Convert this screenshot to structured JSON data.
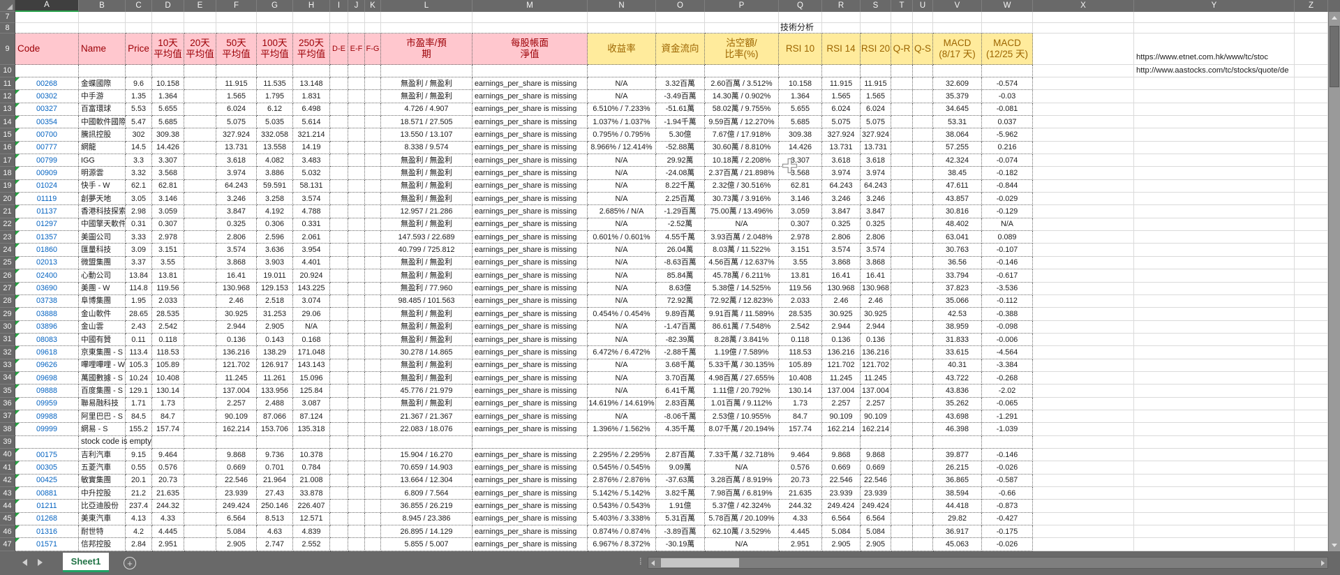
{
  "sheet": {
    "column_letters": [
      "A",
      "B",
      "C",
      "D",
      "E",
      "F",
      "G",
      "H",
      "I",
      "J",
      "K",
      "L",
      "M",
      "N",
      "O",
      "P",
      "Q",
      "R",
      "S",
      "T",
      "U",
      "V",
      "W",
      "X",
      "Y",
      "Z"
    ],
    "pre_row_numbers": [
      7,
      8,
      9,
      10
    ],
    "analysis_label": "技術分析",
    "eps_missing_text": "earnings_per_share is missing",
    "urls": {
      "etnet": "https://www.etnet.com.hk/www/tc/stoc",
      "aastocks": "http://www.aastocks.com/tc/stocks/quote/de"
    },
    "headers": {
      "code": "Code",
      "name": "Name",
      "price": "Price",
      "avg_10d": "10天\n平均值",
      "avg_20d": "20天\n平均值",
      "avg_50d": "50天\n平均值",
      "avg_100d": "100天\n平均值",
      "avg_250d": "250天\n平均值",
      "d_e": "D-E",
      "e_f": "E-F",
      "f_g": "F-G",
      "pe_ratio_forecast": "市盈率/預\n期",
      "book_value_per_share": "每股帳面\n淨值",
      "yield_rate": "收益率",
      "money_flow": "資金流向",
      "short_sell": "沽空額/\n比率(%)",
      "rsi_10": "RSI 10",
      "rsi_14": "RSI 14",
      "rsi_20": "RSI 20",
      "q_r": "Q-R",
      "q_s": "Q-S",
      "macd_8_17": "MACD\n(8/17 天)",
      "macd_12_25": "MACD\n(12/25 天)"
    },
    "row_fields": [
      "row_number",
      "code",
      "name",
      "price",
      "avg_10d",
      "avg_20d",
      "avg_50d",
      "avg_100d",
      "avg_250d",
      "pe_ratio_forecast",
      "yield_rate",
      "money_flow",
      "short_sell_amount_ratio",
      "rsi_10",
      "rsi_14",
      "rsi_20",
      "macd_8_17",
      "macd_12_25"
    ],
    "rows": [
      [
        11,
        "00268",
        "金蝶國際",
        "9.6",
        "10.158",
        "",
        "11.915",
        "11.535",
        "13.148",
        "無盈利 / 無盈利",
        "N/A",
        "3.32百萬",
        "2.60百萬 / 3.512%",
        "10.158",
        "11.915",
        "11.915",
        "32.609",
        "-0.574"
      ],
      [
        12,
        "00302",
        "中手游",
        "1.35",
        "1.364",
        "",
        "1.565",
        "1.795",
        "1.831",
        "無盈利 / 無盈利",
        "N/A",
        "-3.49百萬",
        "14.30萬 / 0.902%",
        "1.364",
        "1.565",
        "1.565",
        "35.379",
        "-0.03"
      ],
      [
        13,
        "00327",
        "百富環球",
        "5.53",
        "5.655",
        "",
        "6.024",
        "6.12",
        "6.498",
        "4.726 / 4.907",
        "6.510% / 7.233%",
        "-51.61萬",
        "58.02萬 / 9.755%",
        "5.655",
        "6.024",
        "6.024",
        "34.645",
        "-0.081"
      ],
      [
        14,
        "00354",
        "中國軟件國際",
        "5.47",
        "5.685",
        "",
        "5.075",
        "5.035",
        "5.614",
        "18.571 / 27.505",
        "1.037% / 1.037%",
        "-1.94千萬",
        "9.59百萬 / 12.270%",
        "5.685",
        "5.075",
        "5.075",
        "53.31",
        "0.037"
      ],
      [
        15,
        "00700",
        "騰訊控股",
        "302",
        "309.38",
        "",
        "327.924",
        "332.058",
        "321.214",
        "13.550 / 13.107",
        "0.795% / 0.795%",
        "5.30億",
        "7.67億 / 17.918%",
        "309.38",
        "327.924",
        "327.924",
        "38.064",
        "-5.962"
      ],
      [
        16,
        "00777",
        "網龍",
        "14.5",
        "14.426",
        "",
        "13.731",
        "13.558",
        "14.19",
        "8.338 / 9.574",
        "8.966% / 12.414%",
        "-52.88萬",
        "30.60萬 / 8.810%",
        "14.426",
        "13.731",
        "13.731",
        "57.255",
        "0.216"
      ],
      [
        17,
        "00799",
        "IGG",
        "3.3",
        "3.307",
        "",
        "3.618",
        "4.082",
        "3.483",
        "無盈利 / 無盈利",
        "N/A",
        "29.92萬",
        "10.18萬 / 2.208%",
        "3.307",
        "3.618",
        "3.618",
        "42.324",
        "-0.074"
      ],
      [
        18,
        "00909",
        "明源雲",
        "3.32",
        "3.568",
        "",
        "3.974",
        "3.886",
        "5.032",
        "無盈利 / 無盈利",
        "N/A",
        "-24.08萬",
        "2.37百萬 / 21.898%",
        "3.568",
        "3.974",
        "3.974",
        "38.45",
        "-0.182"
      ],
      [
        19,
        "01024",
        "快手 - W",
        "62.1",
        "62.81",
        "",
        "64.243",
        "59.591",
        "58.131",
        "無盈利 / 無盈利",
        "N/A",
        "8.22千萬",
        "2.32億 / 30.516%",
        "62.81",
        "64.243",
        "64.243",
        "47.611",
        "-0.844"
      ],
      [
        20,
        "01119",
        "創夢天地",
        "3.05",
        "3.146",
        "",
        "3.246",
        "3.258",
        "3.574",
        "無盈利 / 無盈利",
        "N/A",
        "2.25百萬",
        "30.73萬 / 3.916%",
        "3.146",
        "3.246",
        "3.246",
        "43.857",
        "-0.029"
      ],
      [
        21,
        "01137",
        "香港科技探索",
        "2.98",
        "3.059",
        "",
        "3.847",
        "4.192",
        "4.788",
        "12.957 / 21.286",
        "2.685% / N/A",
        "-1.29百萬",
        "75.00萬 / 13.496%",
        "3.059",
        "3.847",
        "3.847",
        "30.816",
        "-0.129"
      ],
      [
        22,
        "01297",
        "中國擎天軟件",
        "0.31",
        "0.307",
        "",
        "0.325",
        "0.306",
        "0.331",
        "無盈利 / 無盈利",
        "N/A",
        "-2.52萬",
        "N/A",
        "0.307",
        "0.325",
        "0.325",
        "48.402",
        "N/A"
      ],
      [
        23,
        "01357",
        "美圖公司",
        "3.33",
        "2.978",
        "",
        "2.806",
        "2.596",
        "2.061",
        "147.593 / 22.689",
        "0.601% / 0.601%",
        "4.55千萬",
        "3.93百萬 / 2.048%",
        "2.978",
        "2.806",
        "2.806",
        "63.041",
        "0.089"
      ],
      [
        24,
        "01860",
        "匯量科技",
        "3.09",
        "3.151",
        "",
        "3.574",
        "3.636",
        "3.954",
        "40.799 / 725.812",
        "N/A",
        "26.04萬",
        "8.03萬 / 11.522%",
        "3.151",
        "3.574",
        "3.574",
        "30.763",
        "-0.107"
      ],
      [
        25,
        "02013",
        "微盟集團",
        "3.37",
        "3.55",
        "",
        "3.868",
        "3.903",
        "4.401",
        "無盈利 / 無盈利",
        "N/A",
        "-8.63百萬",
        "4.56百萬 / 12.637%",
        "3.55",
        "3.868",
        "3.868",
        "36.56",
        "-0.146"
      ],
      [
        26,
        "02400",
        "心動公司",
        "13.84",
        "13.81",
        "",
        "16.41",
        "19.011",
        "20.924",
        "無盈利 / 無盈利",
        "N/A",
        "85.84萬",
        "45.78萬 / 6.211%",
        "13.81",
        "16.41",
        "16.41",
        "33.794",
        "-0.617"
      ],
      [
        27,
        "03690",
        "美團 - W",
        "114.8",
        "119.56",
        "",
        "130.968",
        "129.153",
        "143.225",
        "無盈利 / 77.960",
        "N/A",
        "8.63億",
        "5.38億 / 14.525%",
        "119.56",
        "130.968",
        "130.968",
        "37.823",
        "-3.536"
      ],
      [
        28,
        "03738",
        "阜博集團",
        "1.95",
        "2.033",
        "",
        "2.46",
        "2.518",
        "3.074",
        "98.485 / 101.563",
        "N/A",
        "72.92萬",
        "72.92萬 / 12.823%",
        "2.033",
        "2.46",
        "2.46",
        "35.066",
        "-0.112"
      ],
      [
        29,
        "03888",
        "金山軟件",
        "28.65",
        "28.535",
        "",
        "30.925",
        "31.253",
        "29.06",
        "無盈利 / 無盈利",
        "0.454% / 0.454%",
        "9.89百萬",
        "9.91百萬 / 11.589%",
        "28.535",
        "30.925",
        "30.925",
        "42.53",
        "-0.388"
      ],
      [
        30,
        "03896",
        "金山雲",
        "2.43",
        "2.542",
        "",
        "2.944",
        "2.905",
        "N/A",
        "無盈利 / 無盈利",
        "N/A",
        "-1.47百萬",
        "86.61萬 / 7.548%",
        "2.542",
        "2.944",
        "2.944",
        "38.959",
        "-0.098"
      ],
      [
        31,
        "08083",
        "中國有贊",
        "0.11",
        "0.118",
        "",
        "0.136",
        "0.143",
        "0.168",
        "無盈利 / 無盈利",
        "N/A",
        "-82.39萬",
        "8.28萬 / 3.841%",
        "0.118",
        "0.136",
        "0.136",
        "31.833",
        "-0.006"
      ],
      [
        32,
        "09618",
        "京東集團 - S",
        "113.4",
        "118.53",
        "",
        "136.216",
        "138.29",
        "171.048",
        "30.278 / 14.865",
        "6.472% / 6.472%",
        "-2.88千萬",
        "1.19億 / 7.589%",
        "118.53",
        "136.216",
        "136.216",
        "33.615",
        "-4.564"
      ],
      [
        33,
        "09626",
        "嗶哩嗶哩 - W",
        "105.3",
        "105.89",
        "",
        "121.702",
        "126.917",
        "143.143",
        "無盈利 / 無盈利",
        "N/A",
        "3.68千萬",
        "5.33千萬 / 30.135%",
        "105.89",
        "121.702",
        "121.702",
        "40.31",
        "-3.384"
      ],
      [
        34,
        "09698",
        "萬國數據 - S",
        "10.24",
        "10.408",
        "",
        "11.245",
        "11.261",
        "15.096",
        "無盈利 / 無盈利",
        "N/A",
        "3.70百萬",
        "4.98百萬 / 27.655%",
        "10.408",
        "11.245",
        "11.245",
        "43.722",
        "-0.268"
      ],
      [
        35,
        "09888",
        "百度集團 - S",
        "129.1",
        "130.14",
        "",
        "137.004",
        "133.956",
        "125.84",
        "45.776 / 21.979",
        "N/A",
        "6.41千萬",
        "1.11億 / 20.792%",
        "130.14",
        "137.004",
        "137.004",
        "43.836",
        "-2.02"
      ],
      [
        36,
        "09959",
        "聯易融科技",
        "1.71",
        "1.73",
        "",
        "2.257",
        "2.488",
        "3.087",
        "無盈利 / 無盈利",
        "14.619% / 14.619%",
        "2.83百萬",
        "1.01百萬 / 9.112%",
        "1.73",
        "2.257",
        "2.257",
        "35.262",
        "-0.065"
      ],
      [
        37,
        "09988",
        "阿里巴巴 - S",
        "84.5",
        "84.7",
        "",
        "90.109",
        "87.066",
        "87.124",
        "21.367 / 21.367",
        "N/A",
        "-8.06千萬",
        "2.53億 / 10.955%",
        "84.7",
        "90.109",
        "90.109",
        "43.698",
        "-1.291"
      ],
      [
        38,
        "09999",
        "網易 - S",
        "155.2",
        "157.74",
        "",
        "162.214",
        "153.706",
        "135.318",
        "22.083 / 18.076",
        "1.396% / 1.562%",
        "4.35千萬",
        "8.07千萬 / 20.194%",
        "157.74",
        "162.214",
        "162.214",
        "46.398",
        "-1.039"
      ],
      [
        39,
        "",
        "stock code is empty",
        "",
        "",
        "",
        "",
        "",
        "",
        "",
        "",
        "",
        "",
        "",
        "",
        "",
        "",
        ""
      ],
      [
        40,
        "00175",
        "吉利汽車",
        "9.15",
        "9.464",
        "",
        "9.868",
        "9.736",
        "10.378",
        "15.904 / 16.270",
        "2.295% / 2.295%",
        "2.87百萬",
        "7.33千萬 / 32.718%",
        "9.464",
        "9.868",
        "9.868",
        "39.877",
        "-0.146"
      ],
      [
        41,
        "00305",
        "五菱汽車",
        "0.55",
        "0.576",
        "",
        "0.669",
        "0.701",
        "0.784",
        "70.659 / 14.903",
        "0.545% / 0.545%",
        "9.09萬",
        "N/A",
        "0.576",
        "0.669",
        "0.669",
        "26.215",
        "-0.026"
      ],
      [
        42,
        "00425",
        "敏實集團",
        "20.1",
        "20.73",
        "",
        "22.546",
        "21.964",
        "21.008",
        "13.664 / 12.304",
        "2.876% / 2.876%",
        "-37.63萬",
        "3.28百萬 / 8.919%",
        "20.73",
        "22.546",
        "22.546",
        "36.865",
        "-0.587"
      ],
      [
        43,
        "00881",
        "中升控股",
        "21.2",
        "21.635",
        "",
        "23.939",
        "27.43",
        "33.878",
        "6.809 / 7.564",
        "5.142% / 5.142%",
        "3.82千萬",
        "7.98百萬 / 6.819%",
        "21.635",
        "23.939",
        "23.939",
        "38.594",
        "-0.66"
      ],
      [
        44,
        "01211",
        "比亞迪股份",
        "237.4",
        "244.32",
        "",
        "249.424",
        "250.146",
        "226.407",
        "36.855 / 26.219",
        "0.543% / 0.543%",
        "1.91億",
        "5.37億 / 42.324%",
        "244.32",
        "249.424",
        "249.424",
        "44.418",
        "-0.873"
      ],
      [
        45,
        "01268",
        "美東汽車",
        "4.13",
        "4.33",
        "",
        "6.564",
        "8.513",
        "12.571",
        "8.945 / 23.386",
        "5.403% / 3.338%",
        "5.31百萬",
        "5.78百萬 / 20.109%",
        "4.33",
        "6.564",
        "6.564",
        "29.82",
        "-0.427"
      ],
      [
        46,
        "01316",
        "耐世特",
        "4.2",
        "4.445",
        "",
        "5.084",
        "4.63",
        "4.839",
        "26.895 / 14.129",
        "0.874% / 0.874%",
        "-3.89百萬",
        "62.10萬 / 3.529%",
        "4.445",
        "5.084",
        "5.084",
        "36.917",
        "-0.175"
      ],
      [
        47,
        "01571",
        "信邦控股",
        "2.84",
        "2.951",
        "",
        "2.905",
        "2.747",
        "2.552",
        "5.855 / 5.007",
        "6.967% / 8.372%",
        "-30.19萬",
        "N/A",
        "2.951",
        "2.905",
        "2.905",
        "45.063",
        "-0.026"
      ]
    ],
    "tab": {
      "sheet_name": "Sheet1",
      "add_sheet_label": "+"
    },
    "colors": {
      "header_pink": "#FFC7CE",
      "header_pink_text": "#9C0006",
      "header_yellow": "#FFEB9C",
      "header_yellow_text": "#9C6500",
      "hyperlink_blue": "#0563C1",
      "excel_green": "#217346",
      "chrome_gray": "#696969"
    }
  }
}
